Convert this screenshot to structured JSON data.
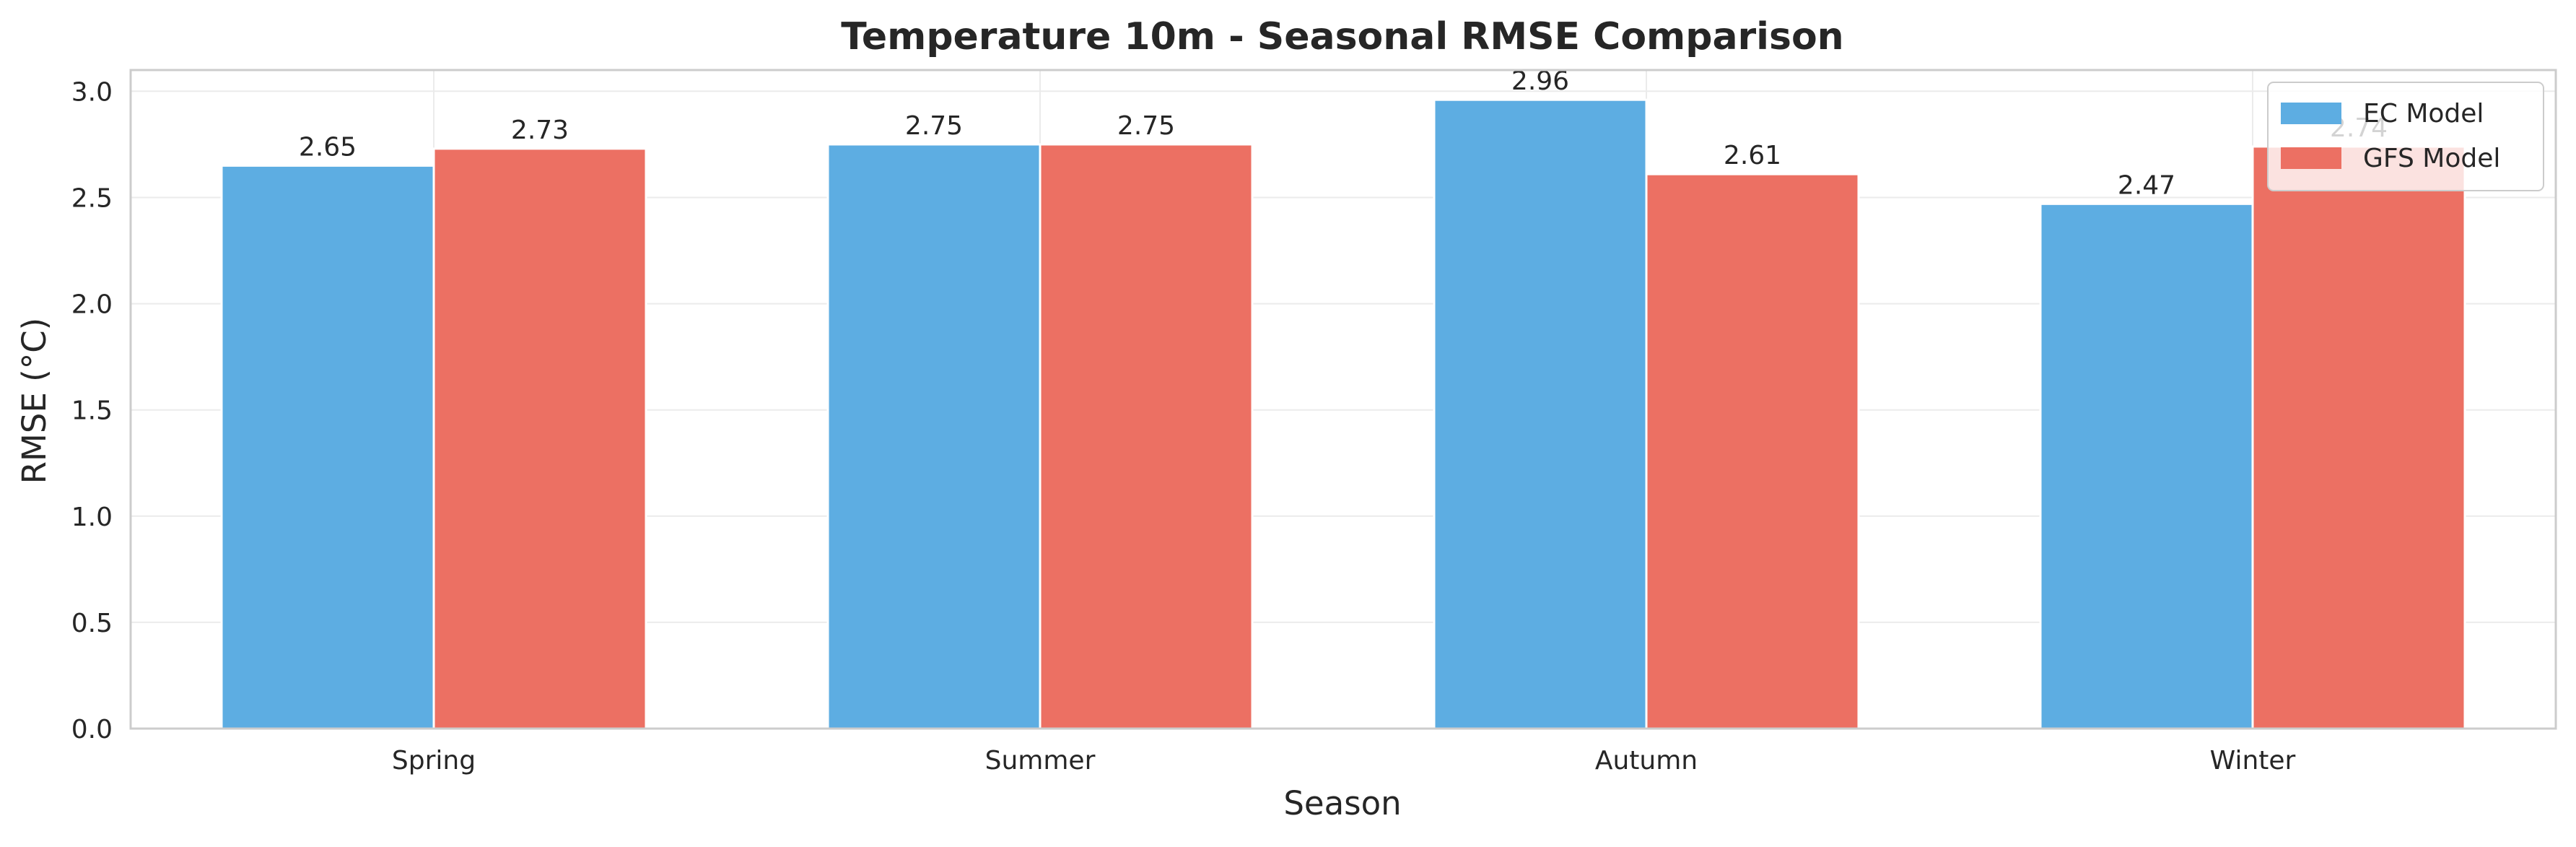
{
  "chart_data": {
    "type": "bar",
    "title": "Temperature 10m - Seasonal RMSE Comparison",
    "xlabel": "Season",
    "ylabel": "RMSE (°C)",
    "categories": [
      "Spring",
      "Summer",
      "Autumn",
      "Winter"
    ],
    "series": [
      {
        "name": "EC Model",
        "color": "#5DADE2",
        "values": [
          2.65,
          2.75,
          2.96,
          2.47
        ],
        "labels": [
          "2.65",
          "2.75",
          "2.96",
          "2.47"
        ]
      },
      {
        "name": "GFS Model",
        "color": "#EC7063",
        "values": [
          2.73,
          2.75,
          2.61,
          2.74
        ],
        "labels": [
          "2.73",
          "2.75",
          "2.61",
          "2.74"
        ]
      }
    ],
    "ylim": [
      0,
      3.1
    ],
    "yticks": [
      "0.0",
      "0.5",
      "1.0",
      "1.5",
      "2.0",
      "2.5",
      "3.0"
    ],
    "grid": true,
    "legend_position": "top-right"
  }
}
